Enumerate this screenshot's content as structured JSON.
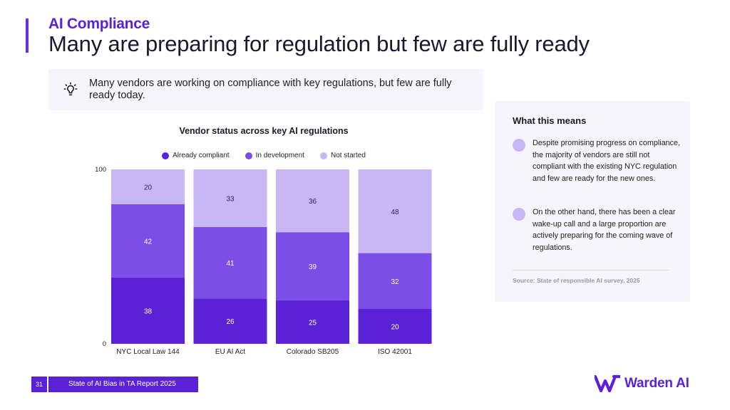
{
  "header": {
    "kicker": "AI Compliance",
    "title": "Many are preparing for regulation but few are fully ready"
  },
  "insight": {
    "icon": "lightbulb-icon",
    "text": "Many vendors are working on compliance with key regulations, but few are fully ready today."
  },
  "chart_data": {
    "type": "bar",
    "stacked": true,
    "title": "Vendor status across key AI regulations",
    "xlabel": "",
    "ylabel": "",
    "categories": [
      "NYC Local Law 144",
      "EU AI Act",
      "Colorado SB205",
      "ISO 42001"
    ],
    "series": [
      {
        "name": "Already compliant",
        "color": "#5b21d6",
        "values": [
          38,
          26,
          25,
          20
        ]
      },
      {
        "name": "In development",
        "color": "#7b4ee8",
        "values": [
          42,
          41,
          39,
          32
        ]
      },
      {
        "name": "Not started",
        "color": "#c9b7f4",
        "values": [
          20,
          33,
          36,
          48
        ]
      }
    ],
    "ylim": [
      0,
      100
    ],
    "yticks": [
      0,
      100
    ],
    "grid": false,
    "legend": "top-center",
    "data_labels": true
  },
  "side_panel": {
    "heading": "What this means",
    "points": [
      "Despite promising progress on compliance, the majority of vendors are still not compliant with the existing NYC regulation and few are ready for the new ones.",
      "On the other hand, there has been a clear wake-up call and a large proportion are actively preparing for the coming wave of regulations."
    ],
    "source": "Source: State of responsible AI survey, 2025"
  },
  "footer": {
    "page_number": "31",
    "report_title": "State of AI Bias in TA Report 2025"
  },
  "brand": {
    "name": "Warden AI",
    "color": "#5b21d6",
    "icon": "warden-logo-icon"
  }
}
